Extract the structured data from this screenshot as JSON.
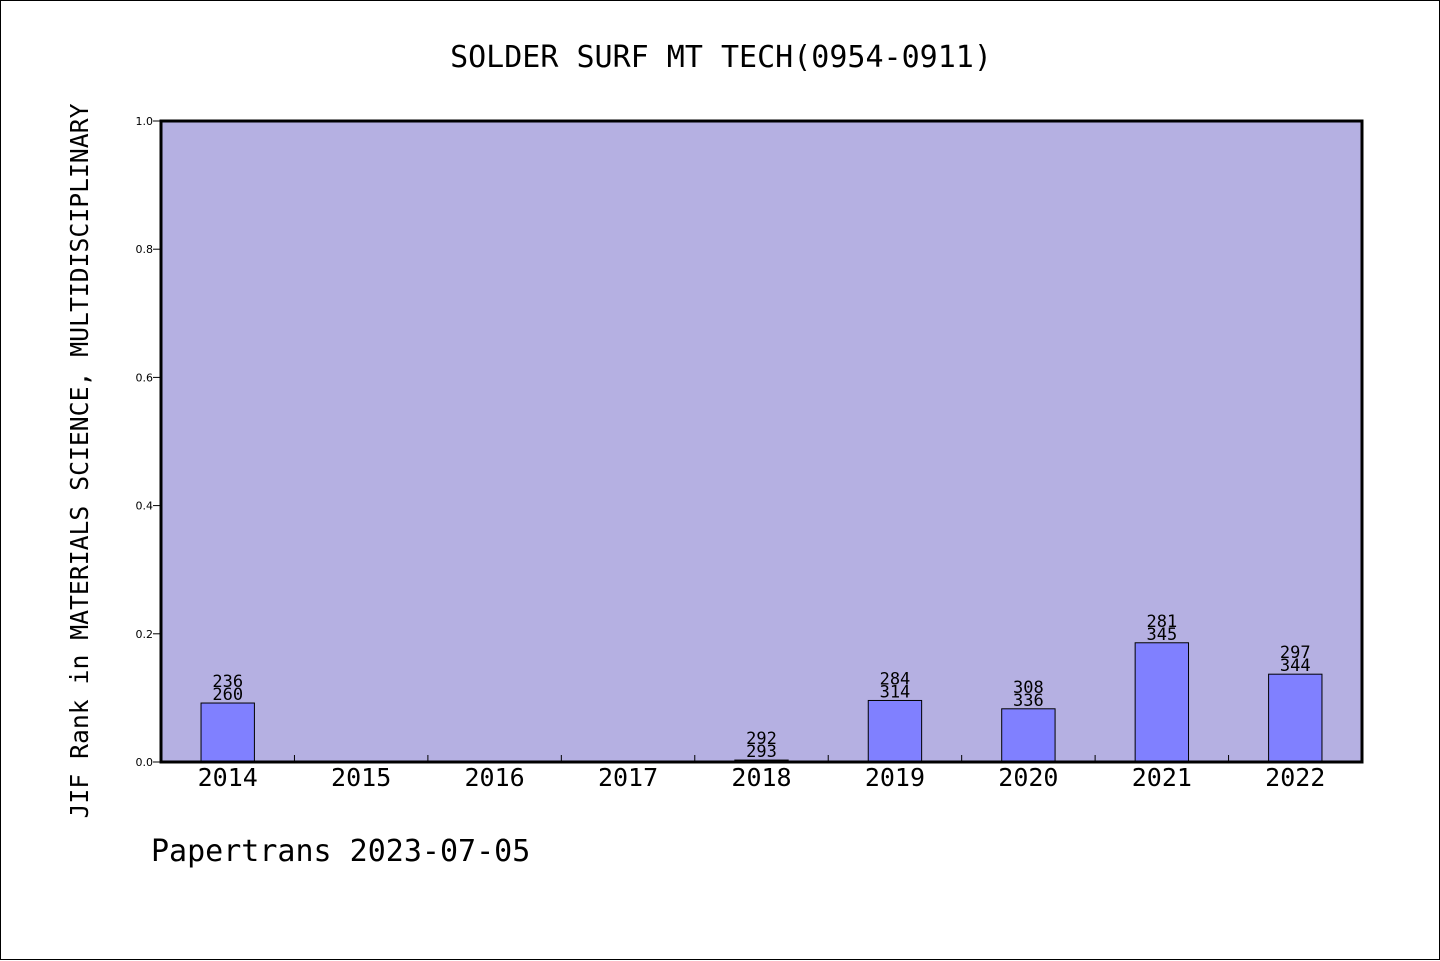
{
  "footer_text": "Papertrans 2023-07-05",
  "chart_data": {
    "type": "bar",
    "title": "SOLDER SURF MT TECH(0954-0911)",
    "xlabel": "",
    "ylabel": "JIF Rank in MATERIALS SCIENCE, MULTIDISCIPLINARY",
    "ylim": [
      0,
      1.0
    ],
    "yticks": [
      0.0,
      0.2,
      0.4,
      0.6,
      0.8,
      1.0
    ],
    "ytick_labels": [
      "0.0",
      "0.2",
      "0.4",
      "0.6",
      "0.8",
      "1.0"
    ],
    "categories": [
      "2014",
      "2015",
      "2016",
      "2017",
      "2018",
      "2019",
      "2020",
      "2021",
      "2022"
    ],
    "values": [
      0.092,
      null,
      null,
      null,
      0.003,
      0.096,
      0.083,
      0.186,
      0.137
    ],
    "rank_labels": [
      "236",
      "",
      "",
      "",
      "292",
      "284",
      "308",
      "281",
      "297"
    ],
    "total_labels": [
      "260",
      "",
      "",
      "",
      "293",
      "314",
      "336",
      "345",
      "344"
    ],
    "grid": false,
    "legend": "none",
    "colors": {
      "plot_background": "#b5b0e2",
      "bar_fill": "#8080ff",
      "bar_stroke": "#000000",
      "axis": "#000000"
    }
  }
}
